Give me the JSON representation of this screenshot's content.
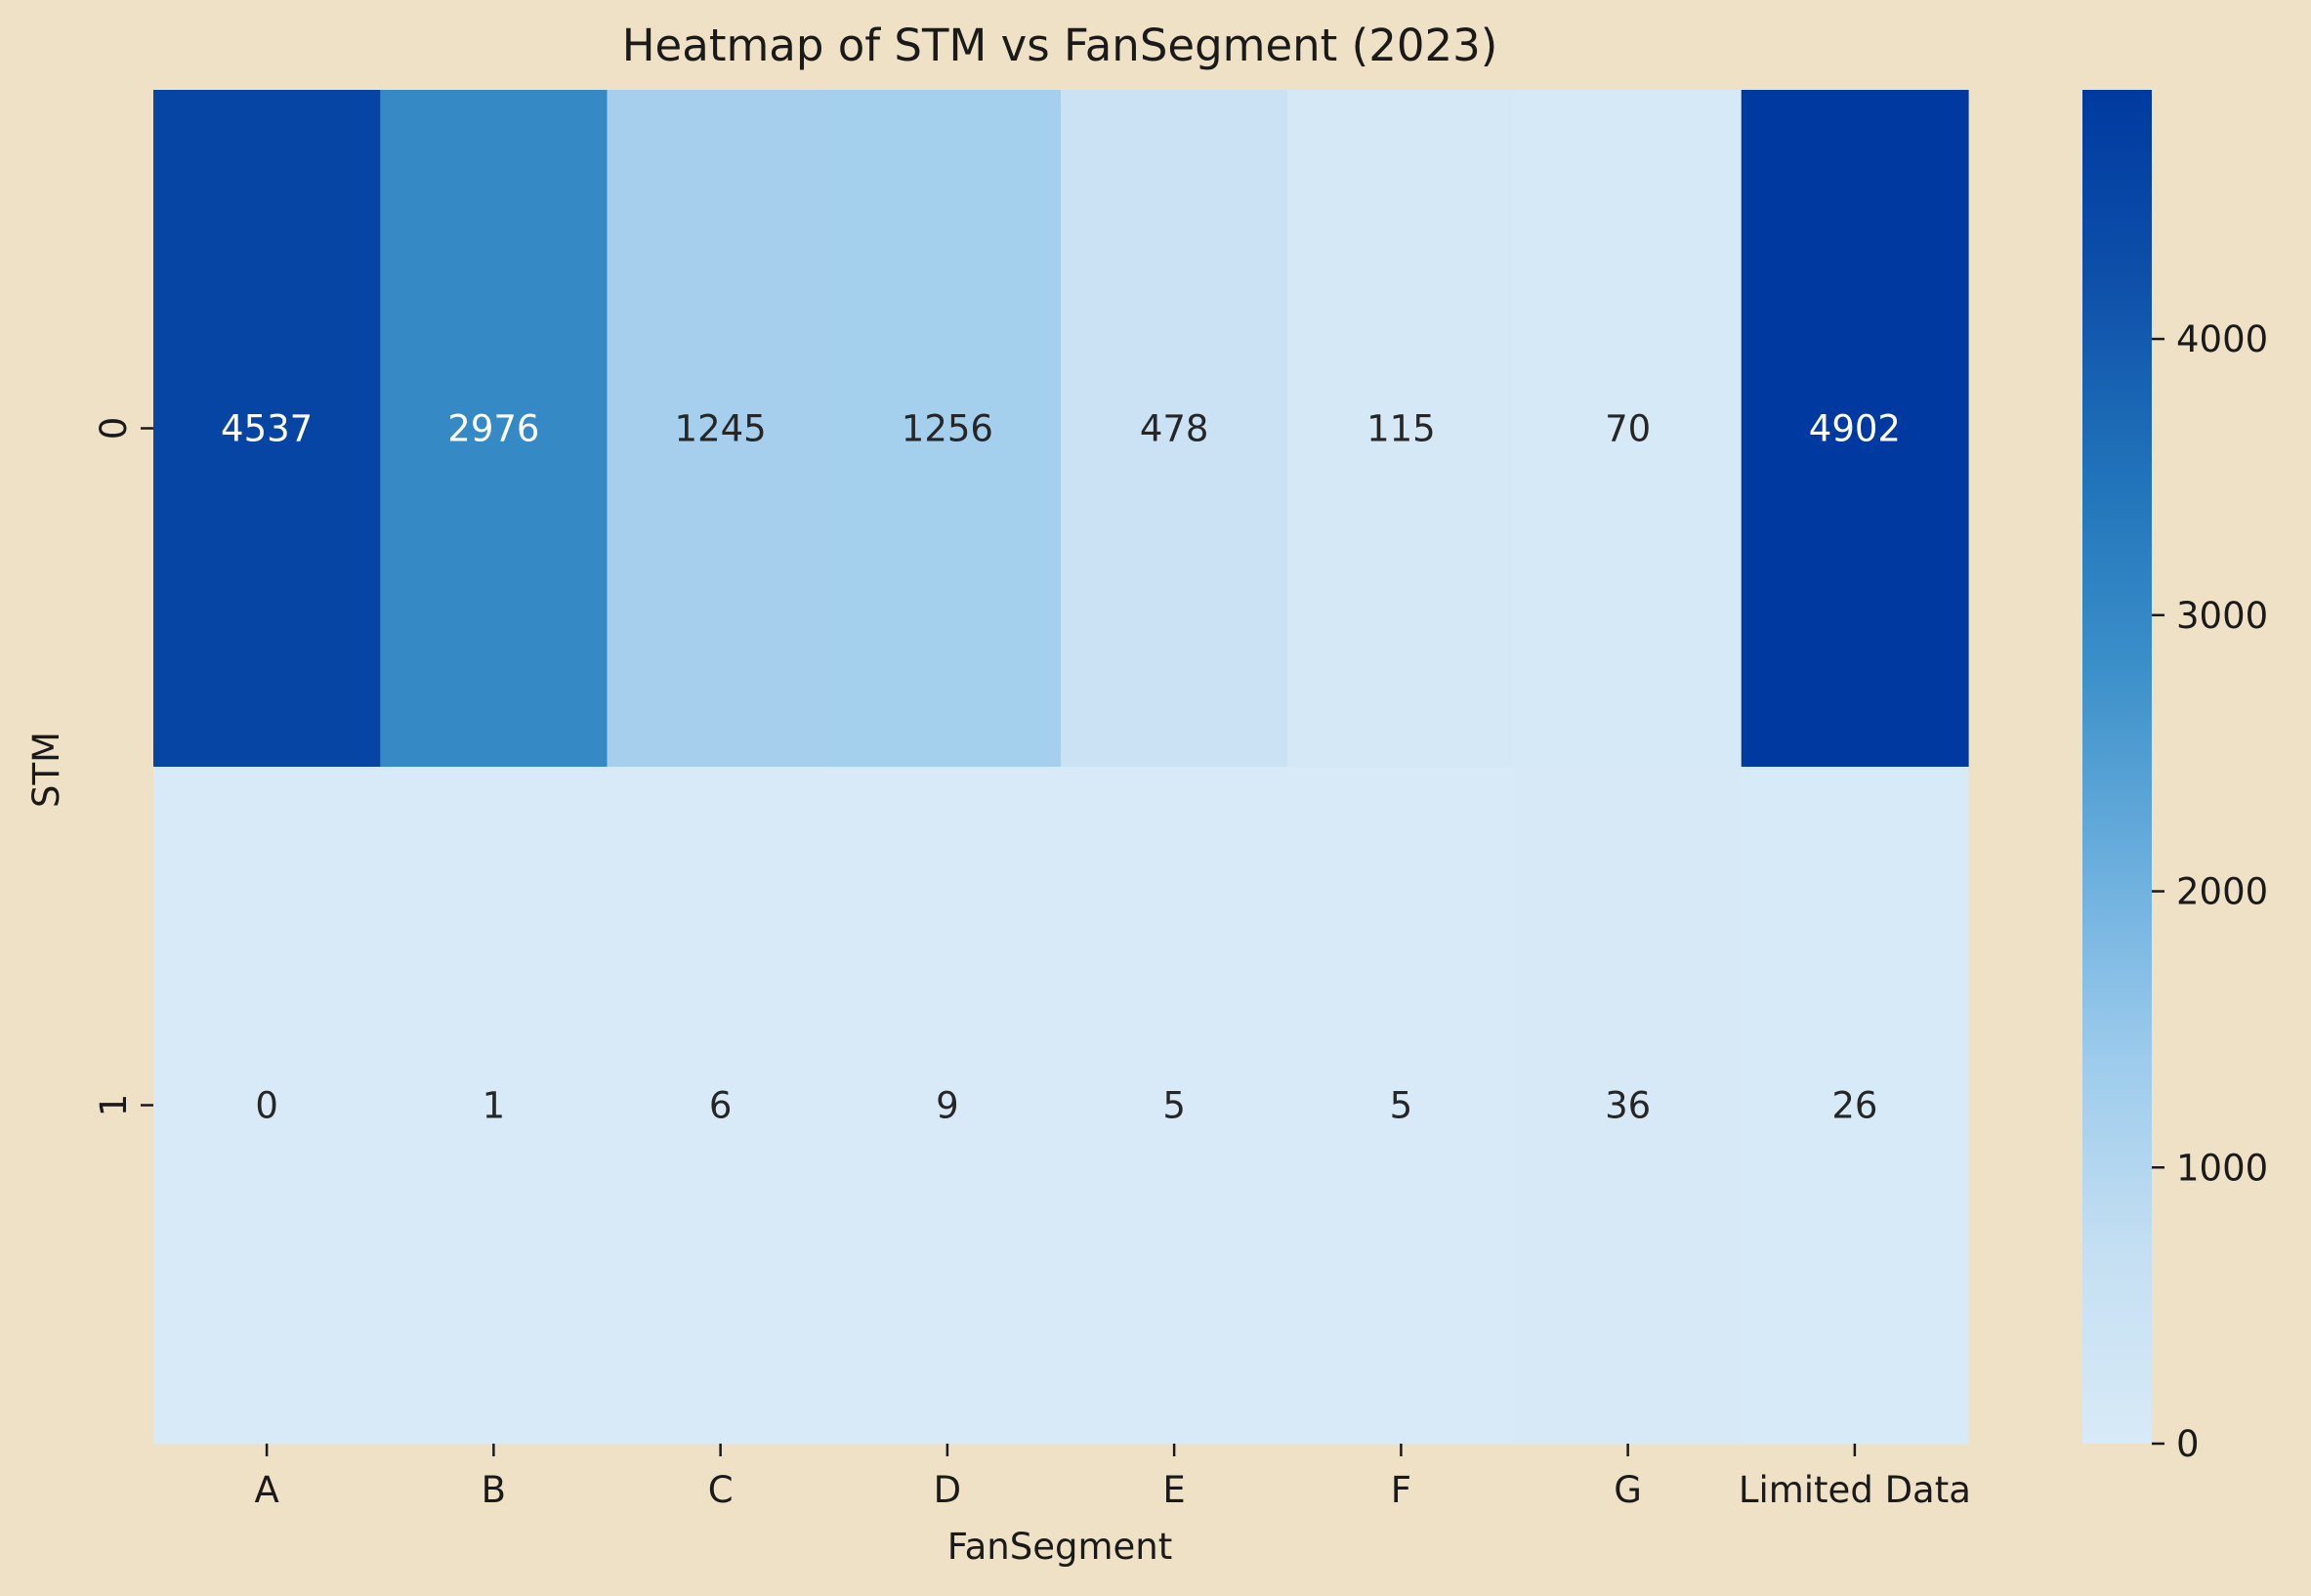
{
  "chart_data": {
    "type": "heatmap",
    "title": "Heatmap of STM vs FanSegment (2023)",
    "xlabel": "FanSegment",
    "ylabel": "STM",
    "x_categories": [
      "A",
      "B",
      "C",
      "D",
      "E",
      "F",
      "G",
      "Limited Data"
    ],
    "y_categories": [
      "0",
      "1"
    ],
    "values": [
      [
        4537,
        2976,
        1245,
        1256,
        478,
        115,
        70,
        4902
      ],
      [
        0,
        1,
        6,
        9,
        5,
        5,
        36,
        26
      ]
    ],
    "colorbar": {
      "min": 0,
      "max": 4902,
      "ticks": [
        0,
        1000,
        2000,
        3000,
        4000
      ],
      "tick_labels": [
        "0",
        "1000",
        "2000",
        "3000",
        "4000"
      ]
    },
    "colormap": [
      "#d8eaf7",
      "#c4dff2",
      "#9ccbec",
      "#6aaedd",
      "#3c90c9",
      "#2173ba",
      "#0e50aa",
      "#003aa0"
    ],
    "background": "#efe1c6"
  }
}
